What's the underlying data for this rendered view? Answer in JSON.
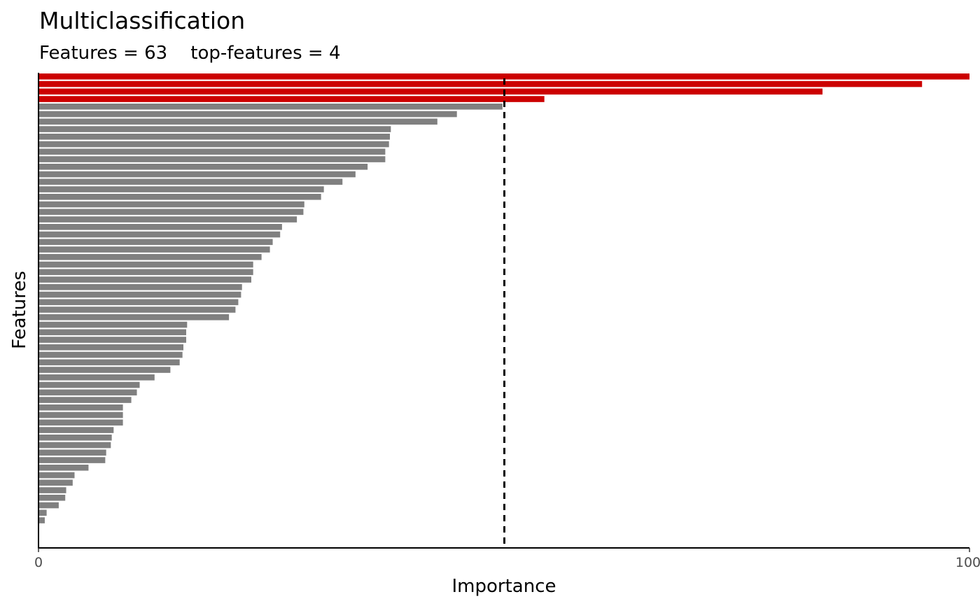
{
  "chart_data": {
    "type": "bar",
    "orientation": "horizontal",
    "title": "Multiclassification",
    "subtitle": "Features = 63    top-features = 4",
    "xlabel": "Importance",
    "ylabel": "Features",
    "xlim": [
      0,
      100
    ],
    "x_ticks": [
      "0",
      "100"
    ],
    "grid": false,
    "top_features": 4,
    "threshold": 50,
    "colors": {
      "top": "#cc0000",
      "other": "#808080",
      "threshold_line": "#000000"
    },
    "values": [
      100,
      94.9,
      84.2,
      54.3,
      49.8,
      44.9,
      42.8,
      37.8,
      37.7,
      37.6,
      37.2,
      37.2,
      35.3,
      34.0,
      32.6,
      30.6,
      30.3,
      28.5,
      28.4,
      27.7,
      26.1,
      25.9,
      25.1,
      24.8,
      23.9,
      23.0,
      23.0,
      22.8,
      21.8,
      21.7,
      21.4,
      21.1,
      20.4,
      15.9,
      15.8,
      15.8,
      15.5,
      15.4,
      15.1,
      14.1,
      12.4,
      10.8,
      10.5,
      9.9,
      9.0,
      9.0,
      9.0,
      8.0,
      7.8,
      7.7,
      7.2,
      7.1,
      5.3,
      3.8,
      3.6,
      2.9,
      2.8,
      2.1,
      0.8,
      0.6,
      0,
      0,
      0
    ]
  }
}
